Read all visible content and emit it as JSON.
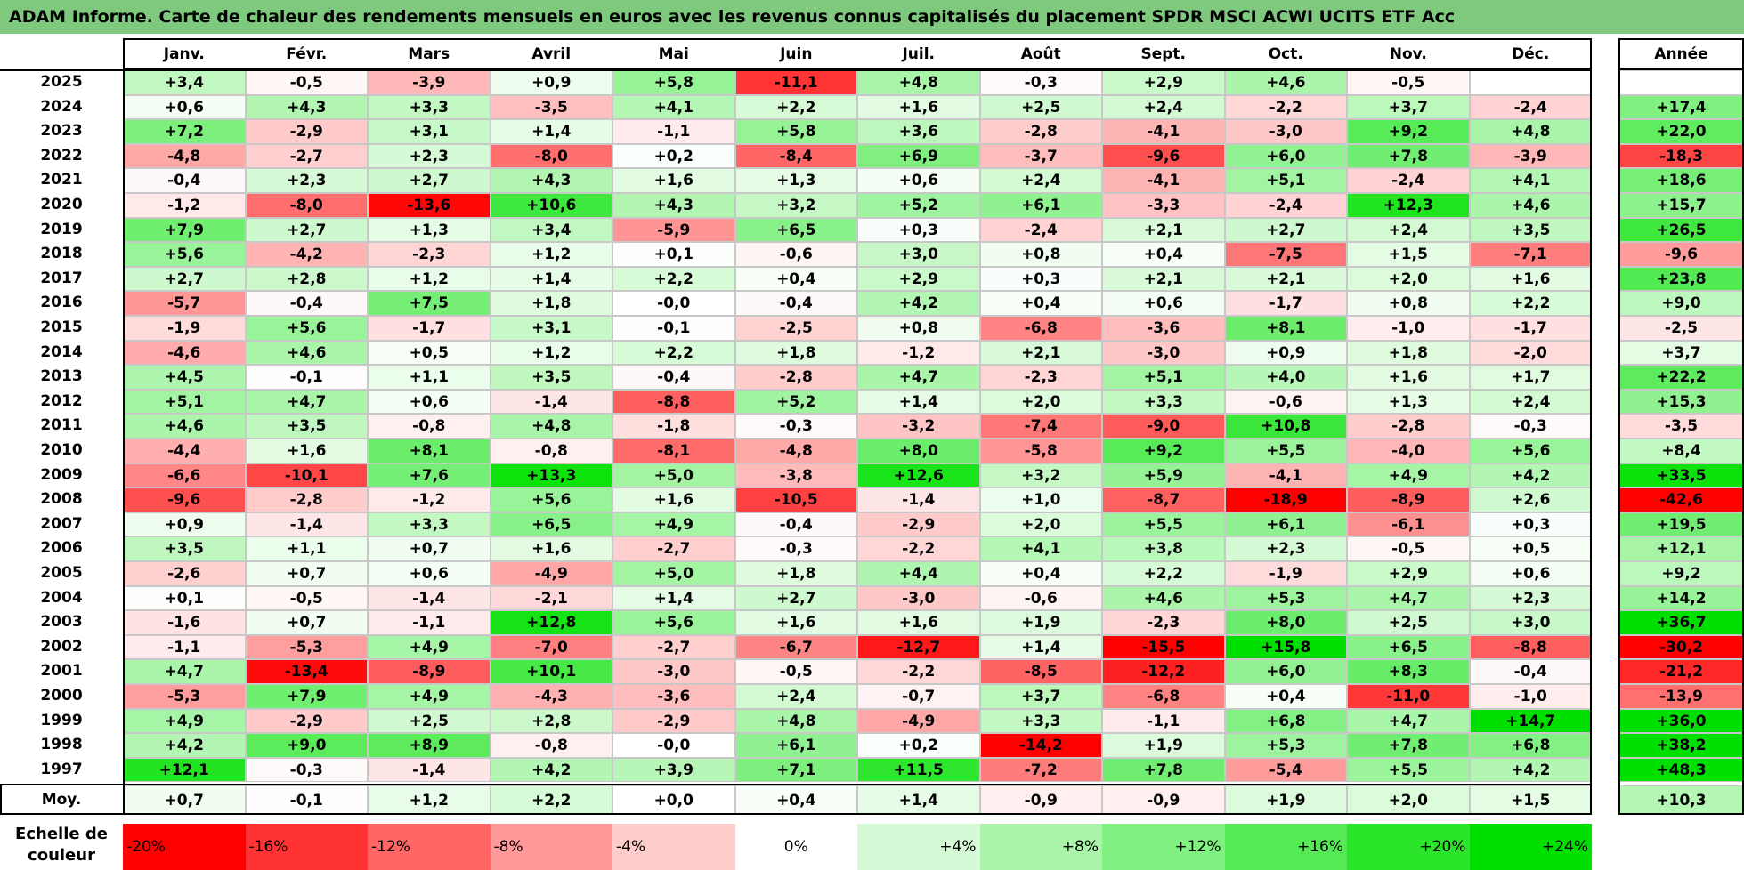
{
  "title": "ADAM Informe. Carte de chaleur des rendements mensuels en euros avec les revenus connus capitalisés du placement SPDR MSCI ACWI UCITS ETF Acc",
  "chart_data": {
    "type": "heatmap",
    "title": "ADAM Informe. Carte de chaleur des rendements mensuels en euros avec les revenus connus capitalisés du placement SPDR MSCI ACWI UCITS ETF Acc",
    "months": [
      "Janv.",
      "Févr.",
      "Mars",
      "Avril",
      "Mai",
      "Juin",
      "Juil.",
      "Août",
      "Sept.",
      "Oct.",
      "Nov.",
      "Déc."
    ],
    "annual_header": "Année",
    "rows": [
      {
        "year": "2025",
        "values": [
          "+3,4",
          "-0,5",
          "-3,9",
          "+0,9",
          "+5,8",
          "-11,1",
          "+4,8",
          "-0,3",
          "+2,9",
          "+4,6",
          "-0,5",
          ""
        ],
        "annual": ""
      },
      {
        "year": "2024",
        "values": [
          "+0,6",
          "+4,3",
          "+3,3",
          "-3,5",
          "+4,1",
          "+2,2",
          "+1,6",
          "+2,5",
          "+2,4",
          "-2,2",
          "+3,7",
          "-2,4"
        ],
        "annual": "+17,4"
      },
      {
        "year": "2023",
        "values": [
          "+7,2",
          "-2,9",
          "+3,1",
          "+1,4",
          "-1,1",
          "+5,8",
          "+3,6",
          "-2,8",
          "-4,1",
          "-3,0",
          "+9,2",
          "+4,8"
        ],
        "annual": "+22,0"
      },
      {
        "year": "2022",
        "values": [
          "-4,8",
          "-2,7",
          "+2,3",
          "-8,0",
          "+0,2",
          "-8,4",
          "+6,9",
          "-3,7",
          "-9,6",
          "+6,0",
          "+7,8",
          "-3,9"
        ],
        "annual": "-18,3"
      },
      {
        "year": "2021",
        "values": [
          "-0,4",
          "+2,3",
          "+2,7",
          "+4,3",
          "+1,6",
          "+1,3",
          "+0,6",
          "+2,4",
          "-4,1",
          "+5,1",
          "-2,4",
          "+4,1"
        ],
        "annual": "+18,6"
      },
      {
        "year": "2020",
        "values": [
          "-1,2",
          "-8,0",
          "-13,6",
          "+10,6",
          "+4,3",
          "+3,2",
          "+5,2",
          "+6,1",
          "-3,3",
          "-2,4",
          "+12,3",
          "+4,6"
        ],
        "annual": "+15,7"
      },
      {
        "year": "2019",
        "values": [
          "+7,9",
          "+2,7",
          "+1,3",
          "+3,4",
          "-5,9",
          "+6,5",
          "+0,3",
          "-2,4",
          "+2,1",
          "+2,7",
          "+2,4",
          "+3,5"
        ],
        "annual": "+26,5"
      },
      {
        "year": "2018",
        "values": [
          "+5,6",
          "-4,2",
          "-2,3",
          "+1,2",
          "+0,1",
          "-0,6",
          "+3,0",
          "+0,8",
          "+0,4",
          "-7,5",
          "+1,5",
          "-7,1"
        ],
        "annual": "-9,6"
      },
      {
        "year": "2017",
        "values": [
          "+2,7",
          "+2,8",
          "+1,2",
          "+1,4",
          "+2,2",
          "+0,4",
          "+2,9",
          "+0,3",
          "+2,1",
          "+2,1",
          "+2,0",
          "+1,6"
        ],
        "annual": "+23,8"
      },
      {
        "year": "2016",
        "values": [
          "-5,7",
          "-0,4",
          "+7,5",
          "+1,8",
          "-0,0",
          "-0,4",
          "+4,2",
          "+0,4",
          "+0,6",
          "-1,7",
          "+0,8",
          "+2,2"
        ],
        "annual": "+9,0"
      },
      {
        "year": "2015",
        "values": [
          "-1,9",
          "+5,6",
          "-1,7",
          "+3,1",
          "-0,1",
          "-2,5",
          "+0,8",
          "-6,8",
          "-3,6",
          "+8,1",
          "-1,0",
          "-1,7"
        ],
        "annual": "-2,5"
      },
      {
        "year": "2014",
        "values": [
          "-4,6",
          "+4,6",
          "+0,5",
          "+1,2",
          "+2,2",
          "+1,8",
          "-1,2",
          "+2,1",
          "-3,0",
          "+0,9",
          "+1,8",
          "-2,0"
        ],
        "annual": "+3,7"
      },
      {
        "year": "2013",
        "values": [
          "+4,5",
          "-0,1",
          "+1,1",
          "+3,5",
          "-0,4",
          "-2,8",
          "+4,7",
          "-2,3",
          "+5,1",
          "+4,0",
          "+1,6",
          "+1,7"
        ],
        "annual": "+22,2"
      },
      {
        "year": "2012",
        "values": [
          "+5,1",
          "+4,7",
          "+0,6",
          "-1,4",
          "-8,8",
          "+5,2",
          "+1,4",
          "+2,0",
          "+3,3",
          "-0,6",
          "+1,3",
          "+2,4"
        ],
        "annual": "+15,3"
      },
      {
        "year": "2011",
        "values": [
          "+4,6",
          "+3,5",
          "-0,8",
          "+4,8",
          "-1,8",
          "-0,3",
          "-3,2",
          "-7,4",
          "-9,0",
          "+10,8",
          "-2,8",
          "-0,3"
        ],
        "annual": "-3,5"
      },
      {
        "year": "2010",
        "values": [
          "-4,4",
          "+1,6",
          "+8,1",
          "-0,8",
          "-8,1",
          "-4,8",
          "+8,0",
          "-5,8",
          "+9,2",
          "+5,5",
          "-4,0",
          "+5,6"
        ],
        "annual": "+8,4"
      },
      {
        "year": "2009",
        "values": [
          "-6,6",
          "-10,1",
          "+7,6",
          "+13,3",
          "+5,0",
          "-3,8",
          "+12,6",
          "+3,2",
          "+5,9",
          "-4,1",
          "+4,9",
          "+4,2"
        ],
        "annual": "+33,5"
      },
      {
        "year": "2008",
        "values": [
          "-9,6",
          "-2,8",
          "-1,2",
          "+5,6",
          "+1,6",
          "-10,5",
          "-1,4",
          "+1,0",
          "-8,7",
          "-18,9",
          "-8,9",
          "+2,6"
        ],
        "annual": "-42,6"
      },
      {
        "year": "2007",
        "values": [
          "+0,9",
          "-1,4",
          "+3,3",
          "+6,5",
          "+4,9",
          "-0,4",
          "-2,9",
          "+2,0",
          "+5,5",
          "+6,1",
          "-6,1",
          "+0,3"
        ],
        "annual": "+19,5"
      },
      {
        "year": "2006",
        "values": [
          "+3,5",
          "+1,1",
          "+0,7",
          "+1,6",
          "-2,7",
          "-0,3",
          "-2,2",
          "+4,1",
          "+3,8",
          "+2,3",
          "-0,5",
          "+0,5"
        ],
        "annual": "+12,1"
      },
      {
        "year": "2005",
        "values": [
          "-2,6",
          "+0,7",
          "+0,6",
          "-4,9",
          "+5,0",
          "+1,8",
          "+4,4",
          "+0,4",
          "+2,2",
          "-1,9",
          "+2,9",
          "+0,6"
        ],
        "annual": "+9,2"
      },
      {
        "year": "2004",
        "values": [
          "+0,1",
          "-0,5",
          "-1,4",
          "-2,1",
          "+1,4",
          "+2,7",
          "-3,0",
          "-0,6",
          "+4,6",
          "+5,3",
          "+4,7",
          "+2,3"
        ],
        "annual": "+14,2"
      },
      {
        "year": "2003",
        "values": [
          "-1,6",
          "+0,7",
          "-1,1",
          "+12,8",
          "+5,6",
          "+1,6",
          "+1,6",
          "+1,9",
          "-2,3",
          "+8,0",
          "+2,5",
          "+3,0"
        ],
        "annual": "+36,7"
      },
      {
        "year": "2002",
        "values": [
          "-1,1",
          "-5,3",
          "+4,9",
          "-7,0",
          "-2,7",
          "-6,7",
          "-12,7",
          "+1,4",
          "-15,5",
          "+15,8",
          "+6,5",
          "-8,8"
        ],
        "annual": "-30,2"
      },
      {
        "year": "2001",
        "values": [
          "+4,7",
          "-13,4",
          "-8,9",
          "+10,1",
          "-3,0",
          "-0,5",
          "-2,2",
          "-8,5",
          "-12,2",
          "+6,0",
          "+8,3",
          "-0,4"
        ],
        "annual": "-21,2"
      },
      {
        "year": "2000",
        "values": [
          "-5,3",
          "+7,9",
          "+4,9",
          "-4,3",
          "-3,6",
          "+2,4",
          "-0,7",
          "+3,7",
          "-6,8",
          "+0,4",
          "-11,0",
          "-1,0"
        ],
        "annual": "-13,9"
      },
      {
        "year": "1999",
        "values": [
          "+4,9",
          "-2,9",
          "+2,5",
          "+2,8",
          "-2,9",
          "+4,8",
          "-4,9",
          "+3,3",
          "-1,1",
          "+6,8",
          "+4,7",
          "+14,7"
        ],
        "annual": "+36,0"
      },
      {
        "year": "1998",
        "values": [
          "+4,2",
          "+9,0",
          "+8,9",
          "-0,8",
          "-0,0",
          "+6,1",
          "+0,2",
          "-14,2",
          "+1,9",
          "+5,3",
          "+7,8",
          "+6,8"
        ],
        "annual": "+38,2"
      },
      {
        "year": "1997",
        "values": [
          "+12,1",
          "-0,3",
          "-1,4",
          "+4,2",
          "+3,9",
          "+7,1",
          "+11,5",
          "-7,2",
          "+7,8",
          "-5,4",
          "+5,5",
          "+4,2"
        ],
        "annual": "+48,3"
      }
    ],
    "average_row": {
      "label": "Moy.",
      "values": [
        "+0,7",
        "-0,1",
        "+1,2",
        "+2,2",
        "+0,0",
        "+0,4",
        "+1,4",
        "-0,9",
        "-0,9",
        "+1,9",
        "+2,0",
        "+1,5"
      ],
      "annual": "+10,3"
    },
    "color_scale": {
      "label": "Echelle de\ncouleur",
      "stops": [
        "-20%",
        "-16%",
        "-12%",
        "-8%",
        "-4%",
        "0%",
        "+4%",
        "+8%",
        "+12%",
        "+16%",
        "+20%",
        "+24%"
      ],
      "negative_color": "#ff0000",
      "neutral_color": "#ffffff",
      "positive_color": "#00e000"
    }
  },
  "colors": {
    "title_bar": "#7fc97f",
    "grid_line": "#c8c8c8",
    "frame": "#000000"
  }
}
